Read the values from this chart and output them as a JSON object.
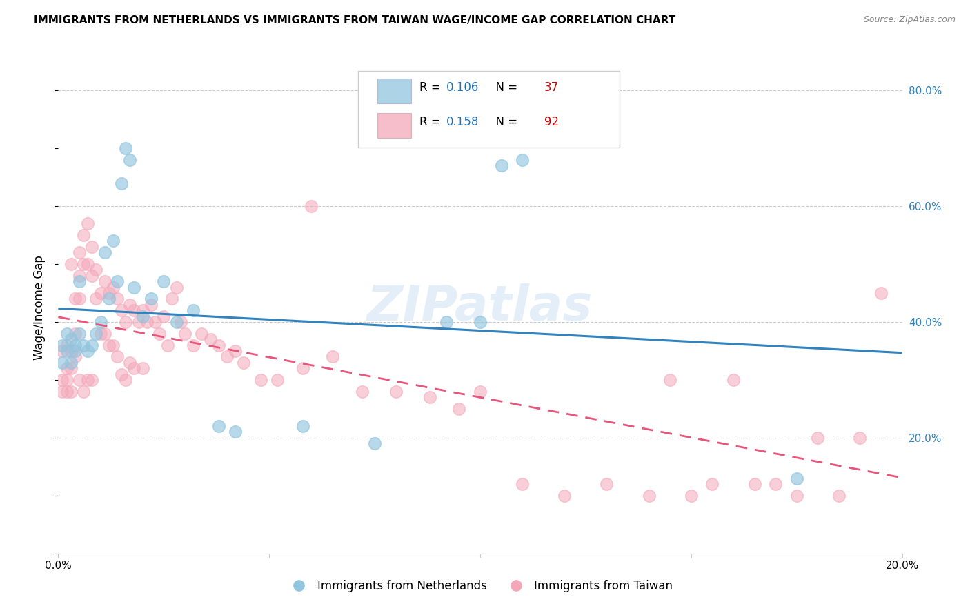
{
  "title": "IMMIGRANTS FROM NETHERLANDS VS IMMIGRANTS FROM TAIWAN WAGE/INCOME GAP CORRELATION CHART",
  "source": "Source: ZipAtlas.com",
  "ylabel": "Wage/Income Gap",
  "xlim": [
    0.0,
    0.2
  ],
  "ylim": [
    0.0,
    0.85
  ],
  "xticks": [
    0.0,
    0.05,
    0.1,
    0.15,
    0.2
  ],
  "xtick_labels": [
    "0.0%",
    "",
    "",
    "",
    "20.0%"
  ],
  "yticks_right": [
    0.2,
    0.4,
    0.6,
    0.8
  ],
  "ytick_labels_right": [
    "20.0%",
    "40.0%",
    "60.0%",
    "80.0%"
  ],
  "watermark": "ZIPatlas",
  "netherlands_R": 0.106,
  "netherlands_N": 37,
  "taiwan_R": 0.158,
  "taiwan_N": 92,
  "blue_color": "#92c5de",
  "pink_color": "#f4a7b9",
  "blue_line_color": "#3182bd",
  "pink_line_color": "#e8547a",
  "legend_R_color": "#2171b5",
  "legend_N_color": "#cc0000",
  "background_color": "#ffffff",
  "grid_color": "#cccccc",
  "nl_x": [
    0.001,
    0.001,
    0.002,
    0.002,
    0.003,
    0.003,
    0.004,
    0.004,
    0.005,
    0.005,
    0.006,
    0.007,
    0.008,
    0.009,
    0.01,
    0.011,
    0.012,
    0.013,
    0.014,
    0.015,
    0.016,
    0.017,
    0.018,
    0.02,
    0.022,
    0.025,
    0.028,
    0.032,
    0.038,
    0.042,
    0.058,
    0.075,
    0.092,
    0.1,
    0.105,
    0.11,
    0.175
  ],
  "nl_y": [
    0.33,
    0.36,
    0.35,
    0.38,
    0.33,
    0.37,
    0.36,
    0.35,
    0.47,
    0.38,
    0.36,
    0.35,
    0.36,
    0.38,
    0.4,
    0.52,
    0.44,
    0.54,
    0.47,
    0.64,
    0.7,
    0.68,
    0.46,
    0.41,
    0.44,
    0.47,
    0.4,
    0.42,
    0.22,
    0.21,
    0.22,
    0.19,
    0.4,
    0.4,
    0.67,
    0.68,
    0.13
  ],
  "tw_x": [
    0.001,
    0.001,
    0.001,
    0.002,
    0.002,
    0.002,
    0.002,
    0.003,
    0.003,
    0.003,
    0.003,
    0.004,
    0.004,
    0.004,
    0.005,
    0.005,
    0.005,
    0.005,
    0.006,
    0.006,
    0.006,
    0.007,
    0.007,
    0.007,
    0.008,
    0.008,
    0.008,
    0.009,
    0.009,
    0.01,
    0.01,
    0.011,
    0.011,
    0.012,
    0.012,
    0.013,
    0.013,
    0.014,
    0.014,
    0.015,
    0.015,
    0.016,
    0.016,
    0.017,
    0.017,
    0.018,
    0.018,
    0.019,
    0.02,
    0.02,
    0.021,
    0.022,
    0.023,
    0.024,
    0.025,
    0.026,
    0.027,
    0.028,
    0.029,
    0.03,
    0.032,
    0.034,
    0.036,
    0.038,
    0.04,
    0.042,
    0.044,
    0.048,
    0.052,
    0.058,
    0.06,
    0.065,
    0.072,
    0.08,
    0.088,
    0.095,
    0.1,
    0.11,
    0.12,
    0.13,
    0.14,
    0.145,
    0.15,
    0.155,
    0.16,
    0.165,
    0.17,
    0.175,
    0.18,
    0.185,
    0.19,
    0.195
  ],
  "tw_y": [
    0.3,
    0.35,
    0.28,
    0.36,
    0.32,
    0.3,
    0.28,
    0.5,
    0.35,
    0.32,
    0.28,
    0.44,
    0.38,
    0.34,
    0.52,
    0.48,
    0.44,
    0.3,
    0.55,
    0.5,
    0.28,
    0.57,
    0.5,
    0.3,
    0.53,
    0.48,
    0.3,
    0.49,
    0.44,
    0.45,
    0.38,
    0.47,
    0.38,
    0.45,
    0.36,
    0.46,
    0.36,
    0.44,
    0.34,
    0.42,
    0.31,
    0.4,
    0.3,
    0.43,
    0.33,
    0.42,
    0.32,
    0.4,
    0.42,
    0.32,
    0.4,
    0.43,
    0.4,
    0.38,
    0.41,
    0.36,
    0.44,
    0.46,
    0.4,
    0.38,
    0.36,
    0.38,
    0.37,
    0.36,
    0.34,
    0.35,
    0.33,
    0.3,
    0.3,
    0.32,
    0.6,
    0.34,
    0.28,
    0.28,
    0.27,
    0.25,
    0.28,
    0.12,
    0.1,
    0.12,
    0.1,
    0.3,
    0.1,
    0.12,
    0.3,
    0.12,
    0.12,
    0.1,
    0.2,
    0.1,
    0.2,
    0.45
  ]
}
